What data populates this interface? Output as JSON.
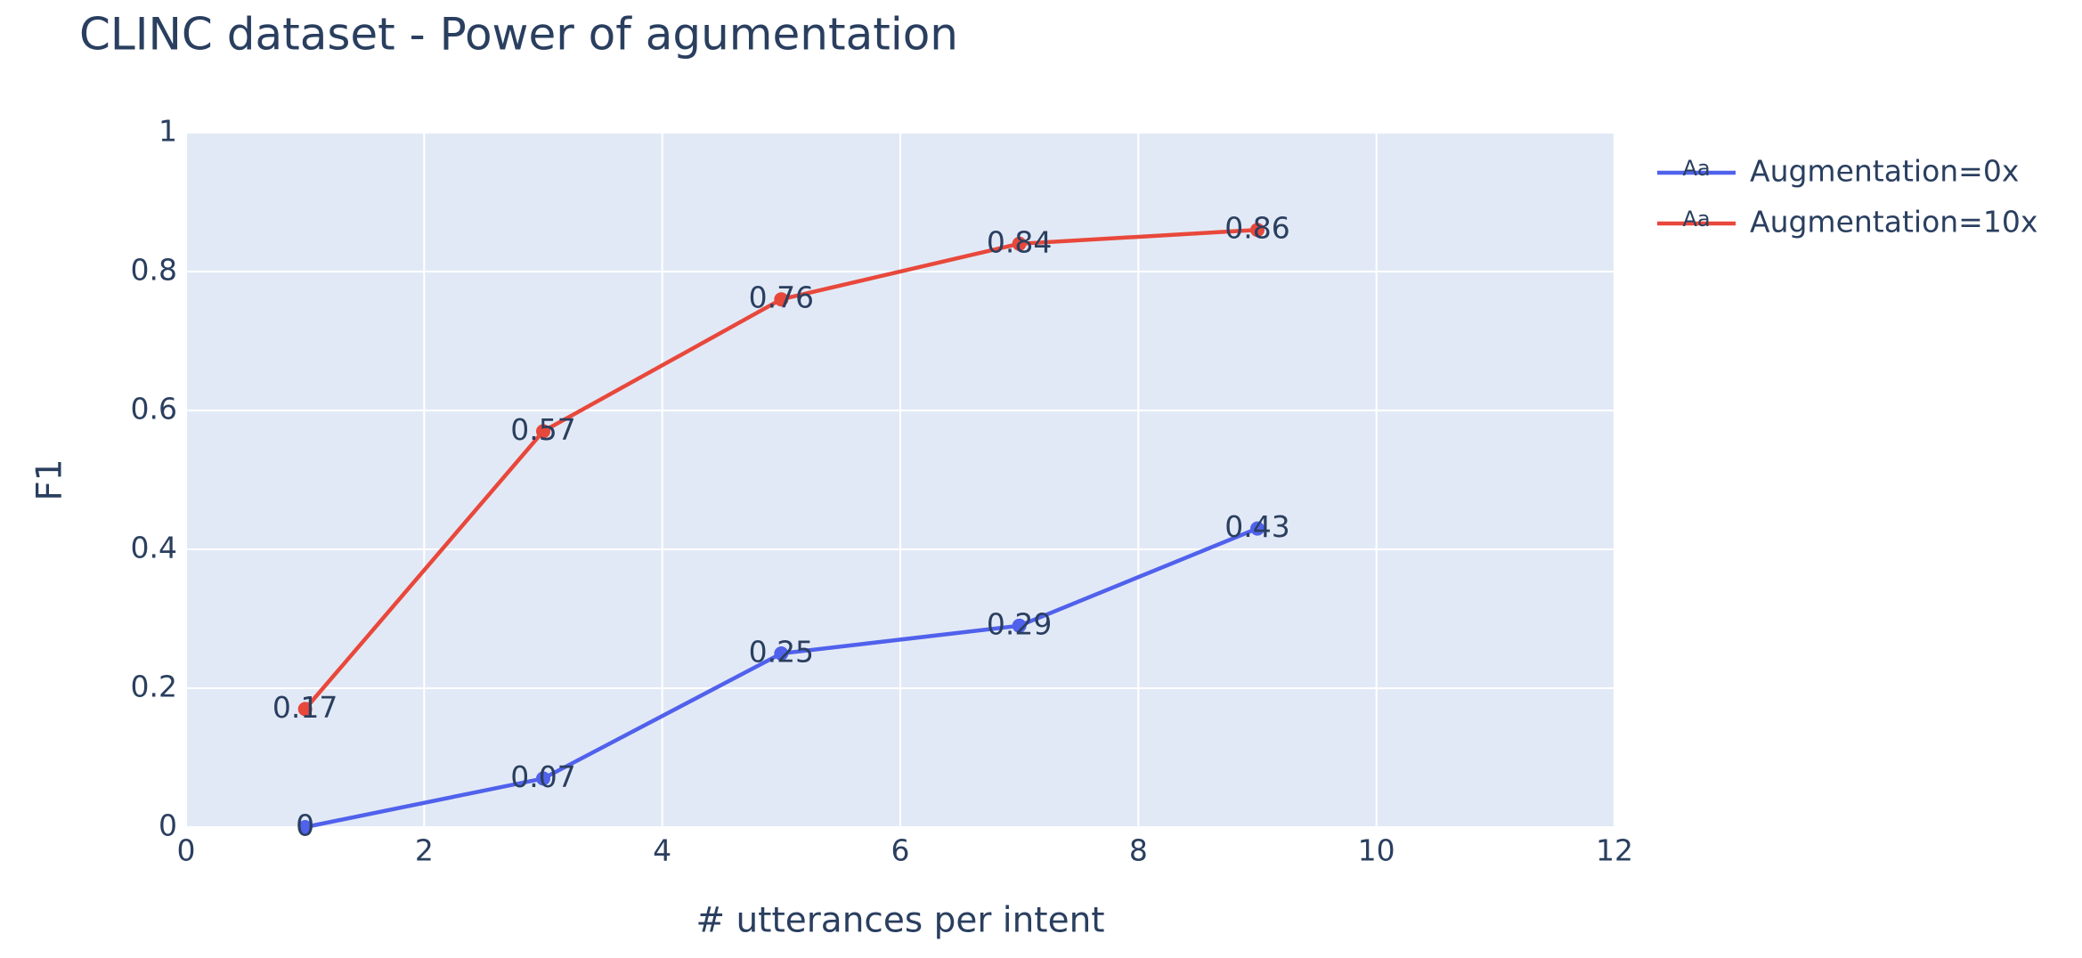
{
  "chart_data": {
    "type": "line",
    "title": "CLINC dataset - Power of agumentation",
    "x_label": "# utterances per intent",
    "y_label": "F1",
    "x": [
      1,
      3,
      5,
      7,
      9
    ],
    "series": [
      {
        "name": "Augmentation=0x",
        "color": "#5061ec",
        "values": [
          0,
          0.07,
          0.25,
          0.29,
          0.43
        ]
      },
      {
        "name": "Augmentation=10x",
        "color": "#e8483b",
        "values": [
          0.17,
          0.57,
          0.76,
          0.84,
          0.86
        ]
      }
    ],
    "legend_symbol": "Aa",
    "xlim": [
      0,
      12
    ],
    "xticks": [
      0,
      2,
      4,
      6,
      8,
      10,
      12
    ],
    "ylim": [
      0,
      1
    ],
    "yticks": [
      0,
      0.2,
      0.4,
      0.6,
      0.8,
      1
    ],
    "grid": true,
    "legend": "right",
    "plot_background": "#e2e9f6"
  }
}
